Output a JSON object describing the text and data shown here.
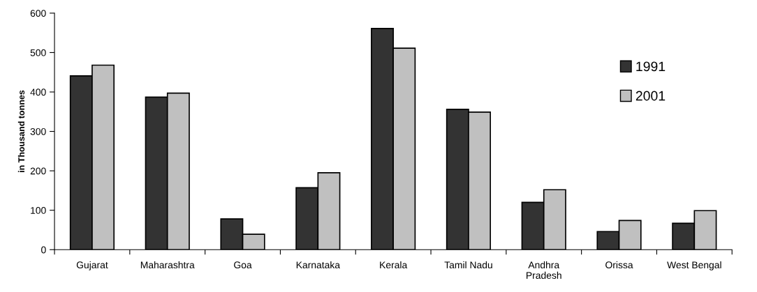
{
  "chart_data": {
    "type": "bar",
    "ylabel": "in Thousand tonnes",
    "categories": [
      "Gujarat",
      "Maharashtra",
      "Goa",
      "Karnataka",
      "Kerala",
      "Tamil Nadu",
      "Andhra\nPradesh",
      "Orissa",
      "West Bengal"
    ],
    "series": [
      {
        "name": "1991",
        "color": "#333333",
        "values": [
          441,
          387,
          78,
          157,
          561,
          356,
          120,
          46,
          67
        ]
      },
      {
        "name": "2001",
        "color": "#c0c0c0",
        "values": [
          468,
          397,
          39,
          195,
          511,
          349,
          152,
          74,
          99
        ]
      }
    ],
    "ylim": [
      0,
      600
    ],
    "yticks": [
      0,
      100,
      200,
      300,
      400,
      500,
      600
    ],
    "grid": false,
    "legend": "top right"
  }
}
